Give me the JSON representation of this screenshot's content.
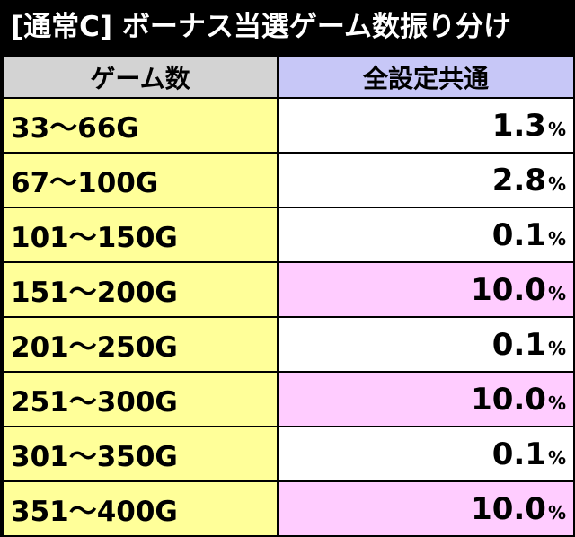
{
  "title": "[通常C] ボーナス当選ゲーム数振り分け",
  "header": {
    "col1": "ゲーム数",
    "col2": "全設定共通"
  },
  "colors": {
    "range_bg": "#ffff99",
    "highlight_bg": "#ffccff",
    "normal_bg": "#ffffff",
    "header1_bg": "#d3d3d3",
    "header2_bg": "#c7c7f7"
  },
  "rows": [
    {
      "range": "33〜66G",
      "value": "1.3",
      "unit": "%",
      "highlight": false
    },
    {
      "range": "67〜100G",
      "value": "2.8",
      "unit": "%",
      "highlight": false
    },
    {
      "range": "101〜150G",
      "value": "0.1",
      "unit": "%",
      "highlight": false
    },
    {
      "range": "151〜200G",
      "value": "10.0",
      "unit": "%",
      "highlight": true
    },
    {
      "range": "201〜250G",
      "value": "0.1",
      "unit": "%",
      "highlight": false
    },
    {
      "range": "251〜300G",
      "value": "10.0",
      "unit": "%",
      "highlight": true
    },
    {
      "range": "301〜350G",
      "value": "0.1",
      "unit": "%",
      "highlight": false
    },
    {
      "range": "351〜400G",
      "value": "10.0",
      "unit": "%",
      "highlight": true
    }
  ]
}
